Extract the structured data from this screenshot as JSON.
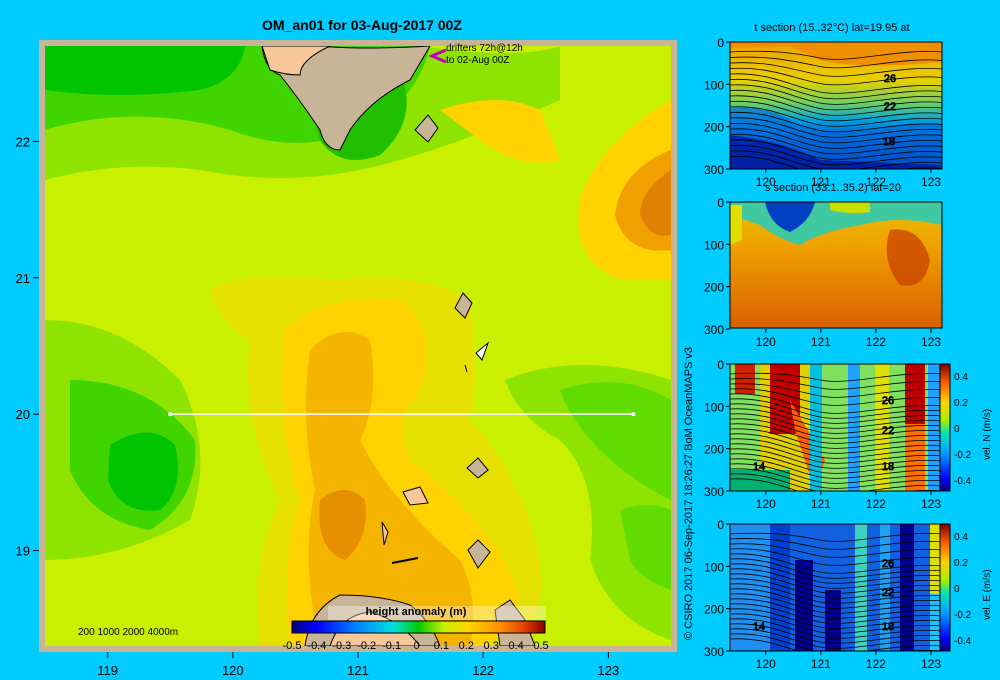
{
  "title": "OM_an01 for 03-Aug-2017 00Z",
  "drifters_label_1": "drifters 72h@12h",
  "drifters_label_2": "to 02-Aug 00Z",
  "depth_legend": "200  1000  2000  4000m",
  "credit": "© CSIRO 2017   06-Sep-2017 18:26:27 BoM OceanMAPS v3",
  "colors": {
    "background": "#00ccff",
    "frame": "#c8b496",
    "land": "#f7c79a"
  },
  "chart_data": [
    {
      "type": "heatmap",
      "name": "main-map",
      "x_ticks": [
        "119",
        "120",
        "121",
        "122",
        "123"
      ],
      "y_ticks": [
        "22",
        "21",
        "20",
        "19"
      ],
      "xlim": [
        118.5,
        123.5
      ],
      "ylim": [
        18.3,
        22.7
      ],
      "section_line": {
        "lat": 20,
        "lon_from": 119.5,
        "lon_to": 123.2
      },
      "colorbar": {
        "label": "height anomaly  (m)",
        "ticks": [
          "-0.5",
          "-0.4",
          "-0.3",
          "-0.2",
          "-0.1",
          "0",
          "0.1",
          "0.2",
          "0.3",
          "0.4",
          "0.5"
        ],
        "range": [
          -0.5,
          0.5
        ]
      }
    },
    {
      "type": "heatmap",
      "name": "t-section",
      "title": "t section (15..32°C) lat=19.95 at",
      "x_ticks": [
        "120",
        "121",
        "122",
        "123"
      ],
      "y_ticks": [
        "0",
        "100",
        "200",
        "300"
      ],
      "contour_labels": [
        "26",
        "22",
        "18"
      ]
    },
    {
      "type": "heatmap",
      "name": "s-section",
      "title": "s section (33.1..35.2) lat=20",
      "x_ticks": [
        "120",
        "121",
        "122",
        "123"
      ],
      "y_ticks": [
        "0",
        "100",
        "200",
        "300"
      ]
    },
    {
      "type": "heatmap",
      "name": "vn-section",
      "x_ticks": [
        "120",
        "121",
        "122",
        "123"
      ],
      "y_ticks": [
        "0",
        "100",
        "200",
        "300"
      ],
      "contour_labels": [
        "26",
        "22",
        "18",
        "14"
      ],
      "colorbar": {
        "label": "vel. N  (m/s)",
        "ticks": [
          "0.4",
          "0.2",
          "0",
          "-0.2",
          "-0.4"
        ],
        "range": [
          -0.4,
          0.4
        ]
      }
    },
    {
      "type": "heatmap",
      "name": "ve-section",
      "x_ticks": [
        "120",
        "121",
        "122",
        "123"
      ],
      "y_ticks": [
        "0",
        "100",
        "200",
        "300"
      ],
      "contour_labels": [
        "26",
        "22",
        "18",
        "14"
      ],
      "colorbar": {
        "label": "vel. E  (m/s)",
        "ticks": [
          "0.4",
          "0.2",
          "0",
          "-0.2",
          "-0.4"
        ],
        "range": [
          -0.4,
          0.4
        ]
      }
    }
  ]
}
